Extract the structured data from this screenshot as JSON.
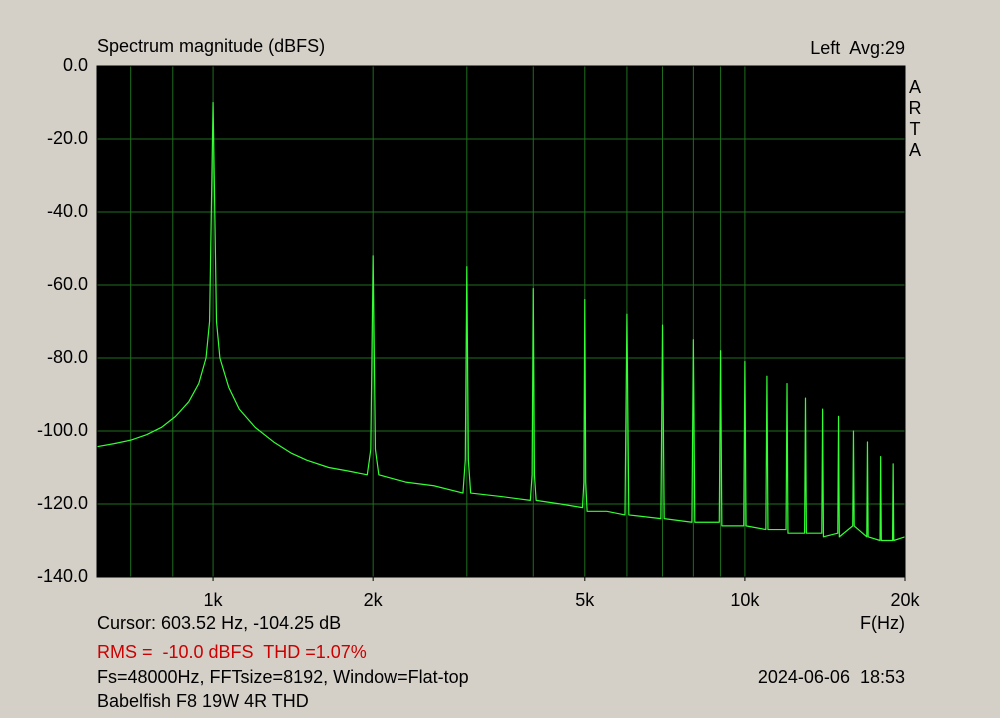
{
  "chart_data": {
    "type": "line",
    "title": "Spectrum magnitude (dBFS)",
    "channel_info": "Left  Avg:29",
    "side_label": "ARTA",
    "x_label": "F(Hz)",
    "cursor": "Cursor: 603.52 Hz, -104.25 dB",
    "measurement": "RMS =  -10.0 dBFS  THD =1.07%",
    "settings": "Fs=48000Hz, FFTsize=8192, Window=Flat-top",
    "timestamp": "2024-06-06  18:53",
    "device": "Babelfish F8 19W 4R THD",
    "x_scale": "log",
    "grid": true,
    "xlim": [
      605,
      20000
    ],
    "ylim": [
      -140,
      0
    ],
    "xticks": [
      {
        "value": 1000,
        "label": "1k"
      },
      {
        "value": 2000,
        "label": "2k"
      },
      {
        "value": 5000,
        "label": "5k"
      },
      {
        "value": 10000,
        "label": "10k"
      },
      {
        "value": 20000,
        "label": "20k"
      }
    ],
    "xgrid": [
      700,
      840,
      1000,
      2000,
      3000,
      4000,
      5000,
      6000,
      7000,
      8000,
      9000,
      10000,
      20000
    ],
    "yticks": [
      {
        "value": 0,
        "label": "0.0"
      },
      {
        "value": -20,
        "label": "-20.0"
      },
      {
        "value": -40,
        "label": "-40.0"
      },
      {
        "value": -60,
        "label": "-60.0"
      },
      {
        "value": -80,
        "label": "-80.0"
      },
      {
        "value": -100,
        "label": "-100.0"
      },
      {
        "value": -120,
        "label": "-120.0"
      },
      {
        "value": -140,
        "label": "-140.0"
      }
    ],
    "x": [
      605,
      650,
      700,
      750,
      800,
      850,
      900,
      940,
      970,
      985,
      995,
      1000,
      1005,
      1015,
      1030,
      1070,
      1120,
      1200,
      1300,
      1400,
      1500,
      1650,
      1800,
      1950,
      1980,
      2000,
      2020,
      2050,
      2300,
      2600,
      2950,
      2980,
      3000,
      3020,
      3050,
      3500,
      3950,
      3980,
      4000,
      4020,
      4050,
      4500,
      4950,
      4980,
      5000,
      5020,
      5050,
      5500,
      5950,
      6000,
      6050,
      6950,
      7000,
      7050,
      7950,
      8000,
      8050,
      8950,
      9000,
      9050,
      9950,
      10000,
      10050,
      10950,
      11000,
      11050,
      11950,
      12000,
      12050,
      12950,
      13000,
      13050,
      13950,
      14000,
      14050,
      14950,
      15000,
      15050,
      15950,
      16000,
      16050,
      16950,
      17000,
      17050,
      17950,
      18000,
      18050,
      18950,
      19000,
      19050,
      20000
    ],
    "series": [
      {
        "color": "#33ff33",
        "values": [
          -104.3,
          -103.5,
          -102.5,
          -101,
          -99,
          -96,
          -92,
          -87,
          -80,
          -70,
          -30,
          -10,
          -30,
          -70,
          -80,
          -88,
          -94,
          -99,
          -103,
          -106,
          -108,
          -110,
          -111,
          -112,
          -105,
          -52,
          -105,
          -112,
          -114,
          -115,
          -117,
          -108,
          -55,
          -108,
          -117,
          -118,
          -119,
          -112,
          -61,
          -112,
          -119,
          -120,
          -121,
          -114,
          -64,
          -114,
          -122,
          -122,
          -123,
          -68,
          -123,
          -124,
          -71,
          -124,
          -125,
          -75,
          -125,
          -125,
          -78,
          -126,
          -126,
          -81,
          -126,
          -127,
          -85,
          -127,
          -127,
          -87,
          -128,
          -128,
          -91,
          -128,
          -128,
          -94,
          -129,
          -128,
          -96,
          -129,
          -126,
          -100,
          -126,
          -129,
          -103,
          -129,
          -130,
          -107,
          -130,
          -130,
          -109,
          -130,
          -129
        ]
      }
    ]
  }
}
